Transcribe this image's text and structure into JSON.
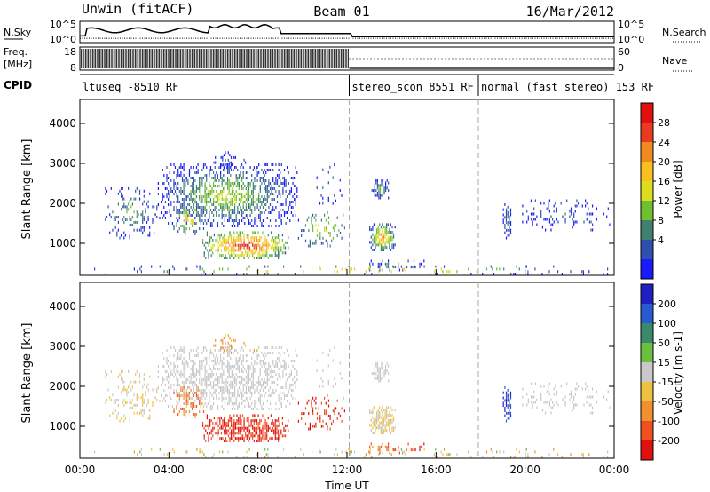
{
  "header": {
    "station": "Unwin (fitACF)",
    "beam": "Beam 01",
    "date": "16/Mar/2012"
  },
  "noise_panel": {
    "left_label": "N.Sky",
    "left_ticks": [
      "10^5",
      "10^0"
    ],
    "right_label": "N.Search",
    "right_ticks": [
      "10^5",
      "10^0"
    ]
  },
  "freq_panel": {
    "left_label_1": "Freq.",
    "left_label_2": "[MHz]",
    "left_ticks": [
      "18",
      "8"
    ],
    "right_label": "Nave",
    "right_ticks": [
      "60",
      "0"
    ]
  },
  "cpid": {
    "label": "CPID",
    "segments": [
      {
        "text": "ltuseq -8510 RF",
        "start_hour": 0
      },
      {
        "text": "stereo_scon 8551 RF",
        "start_hour": 12.1
      },
      {
        "text": "normal (fast stereo) 153 RF",
        "start_hour": 17.9
      }
    ]
  },
  "chart_data": [
    {
      "type": "heatmap",
      "name": "power",
      "ylabel": "Slant Range [km]",
      "yticks": [
        1000,
        2000,
        3000,
        4000
      ],
      "ylim": [
        200,
        4600
      ],
      "xlim": [
        0,
        24
      ],
      "colorbar": {
        "label": "Power [dB]",
        "ticks": [
          4,
          8,
          12,
          16,
          20,
          24,
          28
        ],
        "colors": [
          "#1a1aff",
          "#2f4faf",
          "#3f8070",
          "#6fbf30",
          "#dddd20",
          "#f7c020",
          "#f08a20",
          "#ea3a20",
          "#e01010"
        ]
      }
    },
    {
      "type": "heatmap",
      "name": "velocity",
      "ylabel": "Slant Range [km]",
      "yticks": [
        1000,
        2000,
        3000,
        4000
      ],
      "ylim": [
        200,
        4600
      ],
      "xlim": [
        0,
        24
      ],
      "xlabel": "Time UT",
      "xticks": [
        "00:00",
        "04:00",
        "08:00",
        "12:00",
        "16:00",
        "20:00",
        "00:00"
      ],
      "xtick_hours": [
        0,
        4,
        8,
        12,
        16,
        20,
        24
      ],
      "colorbar": {
        "label": "Velocity [m s-1]",
        "ticks": [
          "200",
          "100",
          "50",
          "15",
          "-15",
          "-50",
          "-100",
          "-200"
        ],
        "colors": [
          "#2020c0",
          "#2a5ad0",
          "#3a8a6a",
          "#6ac040",
          "#c8c8c8",
          "#f0c040",
          "#f09030",
          "#f05020",
          "#e01010"
        ]
      }
    }
  ]
}
